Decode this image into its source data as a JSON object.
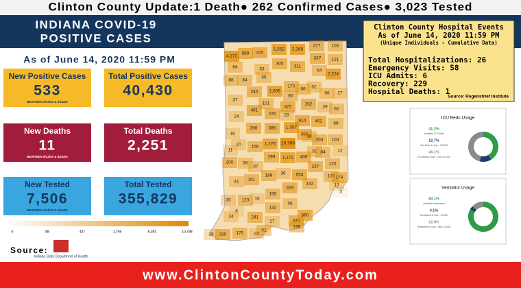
{
  "header": {
    "update": "Clinton County Update:1 Death● 262 Confirmed Cases● 3,023 Tested",
    "title_line1": "INDIANA COVID-19",
    "title_line2": "POSITIVE CASES",
    "as_of": "As of June 14, 2020 11:59 PM"
  },
  "stats": [
    {
      "label": "New Positive Cases",
      "value": "533",
      "note": "BEWTEEN 6/13/20 & 6/14/20"
    },
    {
      "label": "Total Positive Cases",
      "value": "40,430"
    },
    {
      "label": "New Deaths",
      "value": "11",
      "note": "BEWTEEN 6/13/20 & 6/14/20"
    },
    {
      "label": "Total Deaths",
      "value": "2,251"
    },
    {
      "label": "New Tested",
      "value": "7,506",
      "note": "BEWTEEN 6/13/20 & 6/14/20"
    },
    {
      "label": "Total Tested",
      "value": "355,829"
    }
  ],
  "legend": [
    "6",
    "88",
    "447",
    "1,795",
    "5,391",
    "10,788"
  ],
  "map": [
    "4,172",
    "589",
    "470",
    "1,552",
    "2,168",
    "277",
    "105",
    "337",
    "121",
    "84",
    "53",
    "305",
    "311",
    "64",
    "2,224",
    "88",
    "84",
    "55",
    "170",
    "88",
    "52",
    "56",
    "27",
    "245",
    "1,606",
    "80",
    "37",
    "101",
    "472",
    "262",
    "29",
    "62",
    "491",
    "28",
    "24",
    "226",
    "614",
    "402",
    "68",
    "266",
    "386",
    "1,357",
    "386",
    "18",
    "20",
    "156",
    "1,276",
    "10,788",
    "38",
    "204",
    "104",
    "11",
    "51",
    "84",
    "12",
    "56",
    "37",
    "299",
    "1,172",
    "406",
    "200",
    "41",
    "181",
    "188",
    "36",
    "554",
    "237",
    "120",
    "109",
    "179",
    "142",
    "419",
    "35",
    "123",
    "16",
    "150",
    "132",
    "58",
    "13",
    "3",
    "24",
    "6",
    "241",
    "27",
    "335",
    "560",
    "198",
    "92",
    "23",
    "19",
    "330",
    "175"
  ],
  "source": "Source:",
  "logo": "Indiana State Department of Health",
  "hospital": {
    "title": "Clinton County Hospital Events",
    "as_of": "As of June 14, 2020 11:59 PM",
    "note": "(Unique Individuals - Cumulative Data)",
    "lines": [
      "Total Hospitalizations: 26",
      "Emergency Visits: 58",
      "ICU Admits: 6",
      "Recovery: 229",
      "Hospital Deaths: 1"
    ],
    "source": "Source: Regenstrief Institute"
  },
  "icu": {
    "title": "ICU Beds Usage",
    "items": [
      {
        "value": 41.2,
        "label": "41.2%",
        "text": "Available ICU Beds"
      },
      {
        "value": 12.7,
        "label": "12.7%",
        "text": "ICU Beds in Use - COVID"
      },
      {
        "value": 46.1,
        "label": "46.1%",
        "text": "ICU Beds in Use - Non-COVID"
      }
    ]
  },
  "vent": {
    "title": "Ventilator Usage",
    "items": [
      {
        "value": 83.1,
        "label": "83.1%",
        "text": "Available Ventilators"
      },
      {
        "value": 4.1,
        "label": "4.1%",
        "text": "Ventilators in Use - COVID"
      },
      {
        "value": 12.8,
        "label": "12.8%",
        "text": "Ventilators in Use - Non-COVID"
      }
    ]
  },
  "footer": "www.ClintonCountyToday.com"
}
